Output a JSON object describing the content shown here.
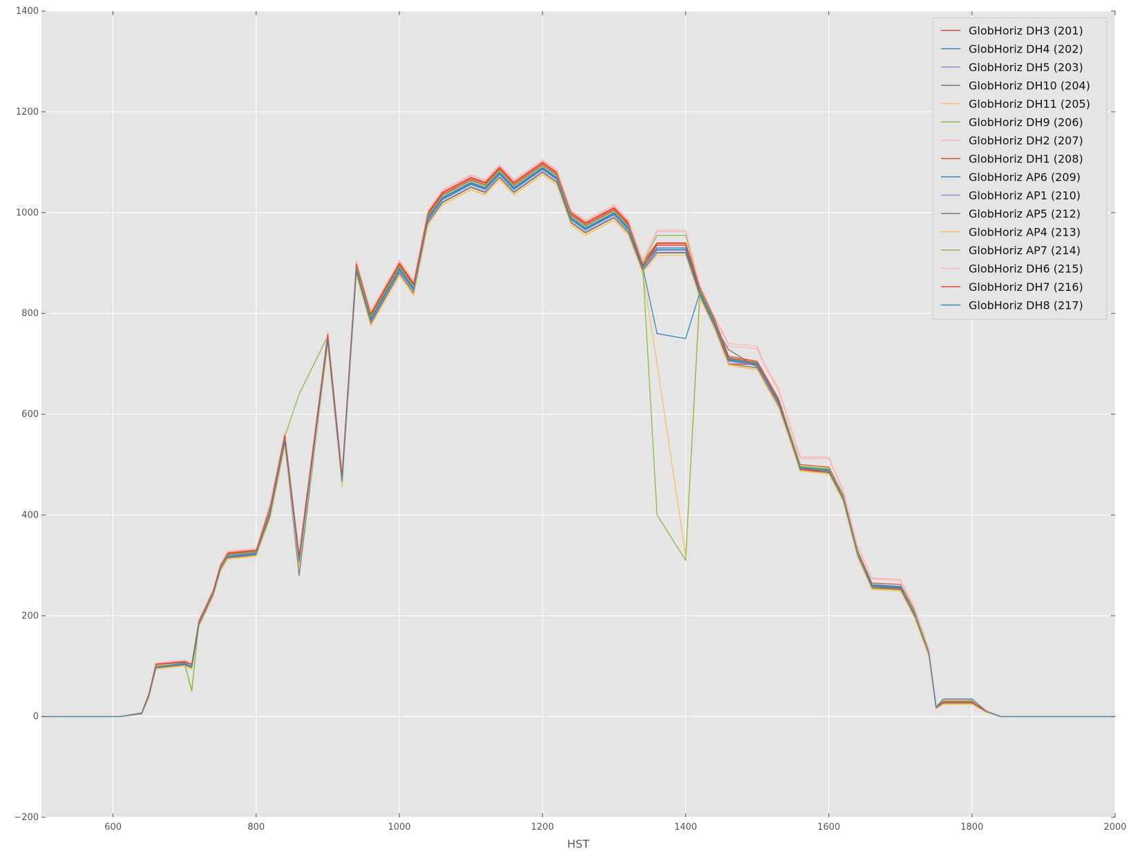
{
  "chart_data": {
    "type": "line",
    "xlabel": "HST",
    "ylabel": "",
    "title": "",
    "xlim": [
      500,
      2000
    ],
    "ylim": [
      -200,
      1400
    ],
    "xticks": [
      600,
      800,
      1000,
      1200,
      1400,
      1600,
      1800,
      2000
    ],
    "yticks": [
      -200,
      0,
      200,
      400,
      600,
      800,
      1000,
      1200,
      1400
    ],
    "xtick_labels": [
      "600",
      "800",
      "1000",
      "1200",
      "1400",
      "1600",
      "1800",
      "2000"
    ],
    "ytick_labels": [
      "−200",
      "0",
      "200",
      "400",
      "600",
      "800",
      "1000",
      "1200",
      "1400"
    ],
    "grid": true,
    "background": "#e5e5e5",
    "legend_position": "top-right",
    "x": [
      500,
      560,
      610,
      640,
      650,
      660,
      700,
      710,
      720,
      740,
      750,
      760,
      800,
      820,
      840,
      860,
      900,
      920,
      940,
      960,
      1000,
      1020,
      1040,
      1060,
      1100,
      1120,
      1140,
      1160,
      1200,
      1220,
      1240,
      1260,
      1300,
      1320,
      1340,
      1360,
      1400,
      1420,
      1440,
      1460,
      1500,
      1510,
      1530,
      1560,
      1600,
      1620,
      1640,
      1660,
      1700,
      1720,
      1740,
      1750,
      1760,
      1800,
      1820,
      1840,
      2000
    ],
    "series": [
      {
        "name": "GlobHoriz DH3 (201)",
        "color": "#E24A33",
        "values": [
          0,
          0,
          0,
          7,
          45,
          105,
          110,
          105,
          190,
          250,
          300,
          325,
          330,
          420,
          560,
          320,
          760,
          480,
          900,
          800,
          900,
          860,
          1000,
          1040,
          1070,
          1060,
          1090,
          1060,
          1100,
          1080,
          1000,
          980,
          1010,
          980,
          900,
          940,
          940,
          850,
          790,
          715,
          705,
          680,
          630,
          500,
          495,
          440,
          330,
          265,
          262,
          210,
          130,
          20,
          32,
          32,
          12,
          0,
          0
        ]
      },
      {
        "name": "GlobHoriz DH4 (202)",
        "color": "#348ABD",
        "values": [
          0,
          0,
          0,
          6,
          42,
          100,
          106,
          100,
          185,
          245,
          296,
          320,
          326,
          410,
          550,
          310,
          750,
          470,
          890,
          790,
          890,
          850,
          990,
          1030,
          1060,
          1050,
          1080,
          1050,
          1090,
          1070,
          990,
          970,
          1000,
          970,
          895,
          930,
          930,
          845,
          785,
          710,
          700,
          675,
          625,
          495,
          490,
          435,
          325,
          262,
          258,
          205,
          125,
          18,
          30,
          30,
          11,
          0,
          0
        ]
      },
      {
        "name": "GlobHoriz DH5 (203)",
        "color": "#988ED5",
        "values": [
          0,
          0,
          0,
          6,
          40,
          98,
          104,
          98,
          182,
          242,
          293,
          318,
          323,
          405,
          545,
          305,
          745,
          465,
          885,
          785,
          885,
          845,
          985,
          1025,
          1055,
          1045,
          1075,
          1045,
          1085,
          1065,
          985,
          965,
          995,
          965,
          890,
          925,
          925,
          840,
          780,
          705,
          696,
          670,
          620,
          492,
          487,
          432,
          322,
          258,
          255,
          200,
          122,
          17,
          28,
          28,
          10,
          0,
          0
        ]
      },
      {
        "name": "GlobHoriz DH10 (204)",
        "color": "#777777",
        "values": [
          0,
          0,
          0,
          5,
          38,
          96,
          102,
          96,
          180,
          240,
          290,
          315,
          320,
          400,
          540,
          300,
          740,
          460,
          880,
          780,
          880,
          840,
          980,
          1020,
          1050,
          1040,
          1070,
          1040,
          1080,
          1060,
          980,
          960,
          990,
          960,
          885,
          920,
          920,
          835,
          775,
          700,
          692,
          665,
          615,
          490,
          484,
          430,
          320,
          255,
          252,
          198,
          120,
          16,
          26,
          26,
          9,
          0,
          0
        ]
      },
      {
        "name": "GlobHoriz DH11 (205)",
        "color": "#FBC15E",
        "values": [
          0,
          0,
          0,
          5,
          36,
          94,
          100,
          94,
          178,
          238,
          288,
          312,
          318,
          395,
          535,
          295,
          735,
          455,
          875,
          775,
          875,
          835,
          975,
          1015,
          1045,
          1035,
          1065,
          1035,
          1075,
          1055,
          975,
          955,
          985,
          955,
          880,
          915,
          915,
          830,
          770,
          697,
          688,
          662,
          612,
          487,
          481,
          427,
          317,
          252,
          249,
          195,
          118,
          15,
          24,
          24,
          8,
          0,
          0
        ]
      },
      {
        "name": "GlobHoriz DH9 (206)",
        "color": "#8EBA42",
        "values": [
          0,
          0,
          0,
          6,
          40,
          100,
          105,
          50,
          188,
          248,
          298,
          322,
          328,
          415,
          555,
          640,
          755,
          475,
          895,
          795,
          895,
          855,
          995,
          1035,
          1065,
          1055,
          1085,
          1055,
          1095,
          1075,
          995,
          975,
          1005,
          975,
          898,
          955,
          955,
          848,
          788,
          712,
          703,
          678,
          628,
          497,
          492,
          437,
          327,
          258,
          256,
          207,
          127,
          19,
          31,
          31,
          11,
          0,
          0
        ]
      },
      {
        "name": "GlobHoriz DH2 (207)",
        "color": "#FFB5B8",
        "values": [
          0,
          0,
          0,
          7,
          46,
          106,
          112,
          106,
          192,
          252,
          302,
          328,
          333,
          425,
          565,
          325,
          765,
          485,
          905,
          805,
          905,
          865,
          1005,
          1045,
          1075,
          1065,
          1095,
          1065,
          1105,
          1085,
          1005,
          985,
          1015,
          985,
          905,
          965,
          965,
          855,
          795,
          740,
          735,
          700,
          650,
          515,
          515,
          450,
          340,
          275,
          272,
          215,
          135,
          22,
          34,
          34,
          13,
          0,
          0
        ]
      },
      {
        "name": "GlobHoriz DH1 (208)",
        "color": "#E24A33",
        "values": [
          0,
          0,
          0,
          7,
          44,
          103,
          108,
          103,
          188,
          248,
          298,
          322,
          328,
          415,
          555,
          315,
          755,
          475,
          895,
          795,
          895,
          855,
          995,
          1035,
          1065,
          1055,
          1085,
          1055,
          1095,
          1075,
          995,
          975,
          1005,
          975,
          893,
          935,
          935,
          848,
          788,
          700,
          698,
          672,
          622,
          488,
          485,
          430,
          320,
          256,
          253,
          200,
          122,
          17,
          27,
          27,
          10,
          0,
          0
        ]
      },
      {
        "name": "GlobHoriz AP6 (209)",
        "color": "#348ABD",
        "values": [
          0,
          0,
          0,
          6,
          42,
          99,
          105,
          99,
          184,
          244,
          294,
          318,
          324,
          408,
          548,
          308,
          748,
          468,
          888,
          788,
          888,
          848,
          988,
          1028,
          1058,
          1048,
          1078,
          1048,
          1088,
          1068,
          988,
          968,
          998,
          968,
          892,
          760,
          750,
          842,
          782,
          708,
          698,
          672,
          622,
          494,
          489,
          434,
          324,
          260,
          257,
          203,
          124,
          18,
          29,
          29,
          10,
          0,
          0
        ]
      },
      {
        "name": "GlobHoriz AP1 (210)",
        "color": "#988ED5",
        "values": [
          0,
          0,
          0,
          6,
          41,
          99,
          104,
          99,
          183,
          243,
          293,
          318,
          323,
          406,
          546,
          306,
          746,
          466,
          886,
          786,
          886,
          846,
          986,
          1026,
          1056,
          1046,
          1076,
          1046,
          1086,
          1066,
          986,
          966,
          996,
          966,
          891,
          926,
          926,
          841,
          781,
          706,
          697,
          671,
          621,
          493,
          488,
          433,
          323,
          259,
          256,
          201,
          123,
          17,
          28,
          28,
          10,
          0,
          0
        ]
      },
      {
        "name": "GlobHoriz AP5 (212)",
        "color": "#777777",
        "values": [
          0,
          0,
          0,
          5,
          39,
          97,
          103,
          97,
          181,
          241,
          291,
          316,
          321,
          401,
          541,
          280,
          741,
          461,
          881,
          781,
          881,
          841,
          981,
          1021,
          1051,
          1041,
          1071,
          1041,
          1081,
          1061,
          981,
          961,
          991,
          961,
          886,
          921,
          921,
          836,
          776,
          728,
          693,
          666,
          616,
          491,
          485,
          431,
          321,
          256,
          253,
          199,
          121,
          16,
          27,
          27,
          9,
          0,
          0
        ]
      },
      {
        "name": "GlobHoriz AP4 (213)",
        "color": "#FBC15E",
        "values": [
          0,
          0,
          0,
          5,
          37,
          95,
          101,
          95,
          179,
          239,
          289,
          313,
          319,
          396,
          536,
          296,
          736,
          456,
          876,
          776,
          876,
          836,
          976,
          1016,
          1046,
          1036,
          1066,
          1036,
          1076,
          1056,
          976,
          956,
          986,
          956,
          881,
          700,
          320,
          831,
          771,
          698,
          689,
          663,
          613,
          488,
          482,
          428,
          318,
          253,
          250,
          196,
          119,
          15,
          25,
          25,
          8,
          0,
          0
        ]
      },
      {
        "name": "GlobHoriz AP7 (214)",
        "color": "#8EBA42",
        "values": [
          0,
          0,
          0,
          6,
          40,
          100,
          104,
          52,
          187,
          247,
          297,
          321,
          327,
          413,
          553,
          313,
          753,
          473,
          893,
          793,
          893,
          853,
          993,
          1033,
          1063,
          1053,
          1083,
          1053,
          1093,
          1073,
          993,
          973,
          1003,
          973,
          897,
          400,
          310,
          847,
          787,
          711,
          702,
          677,
          627,
          496,
          491,
          436,
          326,
          257,
          255,
          206,
          126,
          18,
          30,
          30,
          11,
          0,
          0
        ]
      },
      {
        "name": "GlobHoriz DH6 (215)",
        "color": "#FFB5B8",
        "values": [
          0,
          0,
          0,
          7,
          45,
          105,
          111,
          105,
          191,
          251,
          301,
          327,
          332,
          423,
          563,
          323,
          763,
          483,
          903,
          803,
          903,
          863,
          1003,
          1043,
          1073,
          1063,
          1093,
          1063,
          1103,
          1083,
          1003,
          983,
          1013,
          983,
          903,
          962,
          962,
          853,
          793,
          735,
          730,
          697,
          647,
          512,
          512,
          448,
          338,
          273,
          270,
          213,
          133,
          21,
          33,
          33,
          12,
          0,
          0
        ]
      },
      {
        "name": "GlobHoriz DH7 (216)",
        "color": "#E24A33",
        "values": [
          0,
          0,
          0,
          7,
          44,
          104,
          109,
          104,
          189,
          249,
          299,
          323,
          329,
          418,
          558,
          318,
          758,
          478,
          898,
          798,
          898,
          858,
          998,
          1038,
          1068,
          1058,
          1088,
          1058,
          1098,
          1078,
          998,
          978,
          1008,
          978,
          895,
          938,
          938,
          850,
          790,
          712,
          702,
          677,
          627,
          490,
          488,
          433,
          323,
          258,
          255,
          202,
          124,
          18,
          29,
          29,
          10,
          0,
          0
        ]
      },
      {
        "name": "GlobHoriz DH8 (217)",
        "color": "#348ABD",
        "values": [
          0,
          0,
          0,
          6,
          41,
          98,
          104,
          98,
          183,
          243,
          293,
          317,
          323,
          407,
          547,
          307,
          747,
          467,
          887,
          787,
          887,
          847,
          987,
          1027,
          1057,
          1047,
          1077,
          1047,
          1087,
          1067,
          987,
          967,
          997,
          967,
          890,
          927,
          927,
          841,
          781,
          707,
          698,
          672,
          622,
          493,
          488,
          433,
          323,
          259,
          256,
          202,
          124,
          18,
          35,
          35,
          10,
          0,
          0
        ]
      }
    ]
  }
}
